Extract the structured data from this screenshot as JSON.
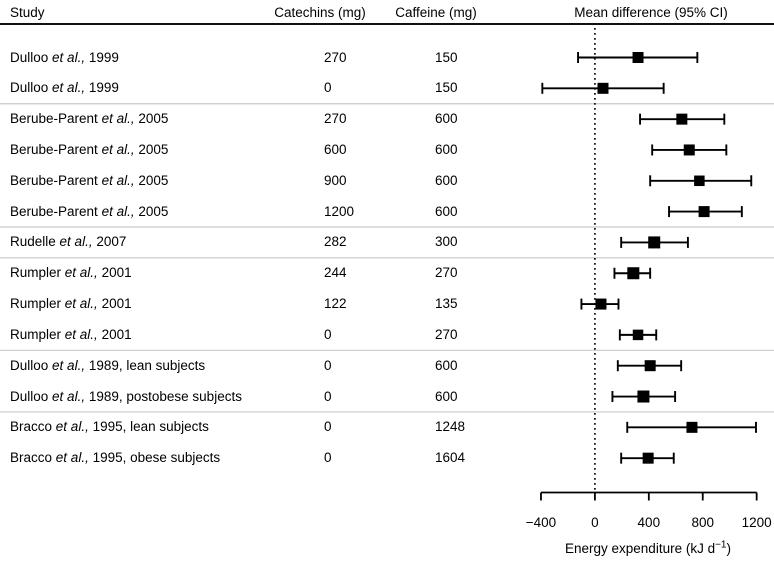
{
  "page": {
    "background": "#ffffff",
    "text_color": "#000000",
    "rule_color": "#111111",
    "separator_color": "#c9c9c9",
    "marker_color": "#000000"
  },
  "header": {
    "study": "Study",
    "catechins": "Catechins (mg)",
    "caffeine": "Caffeine (mg)",
    "mean_diff": "Mean difference (95% CI)"
  },
  "et_al_label": "et al.,",
  "chart_data": {
    "type": "scatter",
    "subtype": "forest-plot",
    "title": "Mean difference (95% CI)",
    "xlabel": "Energy expenditure (kJ d⁻¹)",
    "xlabel_parts": {
      "main": "Energy expenditure (kJ d",
      "sup": "−1",
      "close": ")"
    },
    "xlim": [
      -400,
      1200
    ],
    "x_ticks": [
      -400,
      0,
      400,
      800,
      1200
    ],
    "x_tick_labels": [
      "−400",
      "0",
      "400",
      "800",
      "1200"
    ],
    "zero_reference_line": 0,
    "grid": false,
    "legend_position": "none",
    "columns": [
      "Study",
      "Catechins (mg)",
      "Caffeine (mg)",
      "Mean difference (95% CI)"
    ],
    "rows": [
      {
        "study_pre": "Dulloo",
        "study_suffix": "1999",
        "catechins": "270",
        "caffeine": "150",
        "mean": 320,
        "ci_low": -125,
        "ci_high": 760,
        "marker_px": 11
      },
      {
        "study_pre": "Dulloo",
        "study_suffix": "1999",
        "catechins": "0",
        "caffeine": "150",
        "mean": 60,
        "ci_low": -390,
        "ci_high": 510,
        "marker_px": 11
      },
      {
        "study_pre": "Berube-Parent",
        "study_suffix": "2005",
        "catechins": "270",
        "caffeine": "600",
        "mean": 645,
        "ci_low": 335,
        "ci_high": 960,
        "marker_px": 11
      },
      {
        "study_pre": "Berube-Parent",
        "study_suffix": "2005",
        "catechins": "600",
        "caffeine": "600",
        "mean": 700,
        "ci_low": 425,
        "ci_high": 975,
        "marker_px": 11
      },
      {
        "study_pre": "Berube-Parent",
        "study_suffix": "2005",
        "catechins": "900",
        "caffeine": "600",
        "mean": 775,
        "ci_low": 410,
        "ci_high": 1160,
        "marker_px": 10.5
      },
      {
        "study_pre": "Berube-Parent",
        "study_suffix": "2005",
        "catechins": "1200",
        "caffeine": "600",
        "mean": 810,
        "ci_low": 550,
        "ci_high": 1090,
        "marker_px": 11
      },
      {
        "study_pre": "Rudelle",
        "study_suffix": "2007",
        "catechins": "282",
        "caffeine": "300",
        "mean": 440,
        "ci_low": 195,
        "ci_high": 690,
        "marker_px": 12
      },
      {
        "study_pre": "Rumpler",
        "study_suffix": "2001",
        "catechins": "244",
        "caffeine": "270",
        "mean": 285,
        "ci_low": 145,
        "ci_high": 410,
        "marker_px": 12
      },
      {
        "study_pre": "Rumpler",
        "study_suffix": "2001",
        "catechins": "122",
        "caffeine": "135",
        "mean": 45,
        "ci_low": -100,
        "ci_high": 175,
        "marker_px": 11
      },
      {
        "study_pre": "Rumpler",
        "study_suffix": "2001",
        "catechins": "0",
        "caffeine": "270",
        "mean": 320,
        "ci_low": 185,
        "ci_high": 455,
        "marker_px": 10.5
      },
      {
        "study_pre": "Dulloo",
        "study_suffix": "1989, lean subjects",
        "catechins": "0",
        "caffeine": "600",
        "mean": 410,
        "ci_low": 170,
        "ci_high": 640,
        "marker_px": 11
      },
      {
        "study_pre": "Dulloo",
        "study_suffix": "1989, postobese subjects",
        "catechins": "0",
        "caffeine": "600",
        "mean": 360,
        "ci_low": 130,
        "ci_high": 595,
        "marker_px": 12
      },
      {
        "study_pre": "Bracco",
        "study_suffix": "1995, lean subjects",
        "catechins": "0",
        "caffeine": "1248",
        "mean": 720,
        "ci_low": 240,
        "ci_high": 1195,
        "marker_px": 11
      },
      {
        "study_pre": "Bracco",
        "study_suffix": "1995, obese subjects",
        "catechins": "0",
        "caffeine": "1604",
        "mean": 395,
        "ci_low": 195,
        "ci_high": 585,
        "marker_px": 11
      }
    ],
    "group_separators_after": [
      1,
      5,
      6,
      9,
      11
    ]
  }
}
